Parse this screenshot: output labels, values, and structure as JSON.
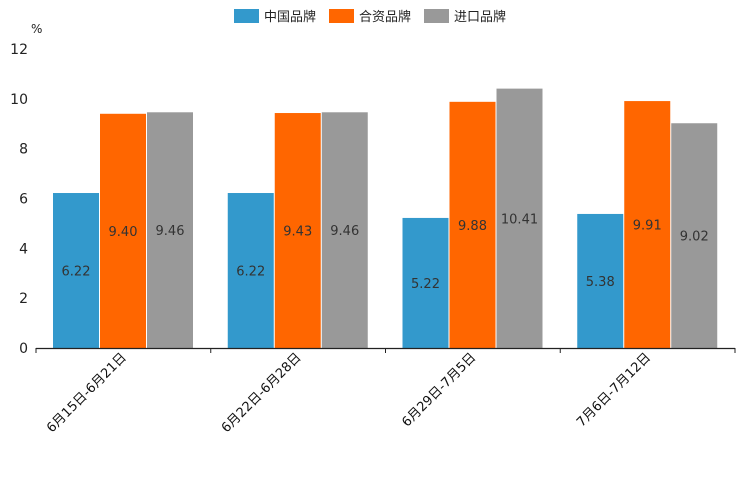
{
  "chart_data": {
    "type": "bar",
    "unit": "%",
    "categories": [
      "6月15日-6月21日",
      "6月22日-6月28日",
      "6月29日-7月5日",
      "7月6日-7月12日"
    ],
    "series": [
      {
        "name": "中国品牌",
        "color": "#3399CC",
        "values": [
          6.22,
          6.22,
          5.22,
          5.38
        ],
        "labels": [
          "6.22",
          "6.22",
          "5.22",
          "5.38"
        ]
      },
      {
        "name": "合资品牌",
        "color": "#FF6600",
        "values": [
          9.4,
          9.43,
          9.88,
          9.91
        ],
        "labels": [
          "9.40",
          "9.43",
          "9.88",
          "9.91"
        ]
      },
      {
        "name": "进口品牌",
        "color": "#999999",
        "values": [
          9.46,
          9.46,
          10.41,
          9.02
        ],
        "labels": [
          "9.46",
          "9.46",
          "10.41",
          "9.02"
        ]
      }
    ],
    "ylim": [
      0,
      12
    ],
    "yticks": [
      "0",
      "2",
      "4",
      "6",
      "8",
      "10",
      "12"
    ],
    "legend_position": "top-center",
    "grid": false
  }
}
